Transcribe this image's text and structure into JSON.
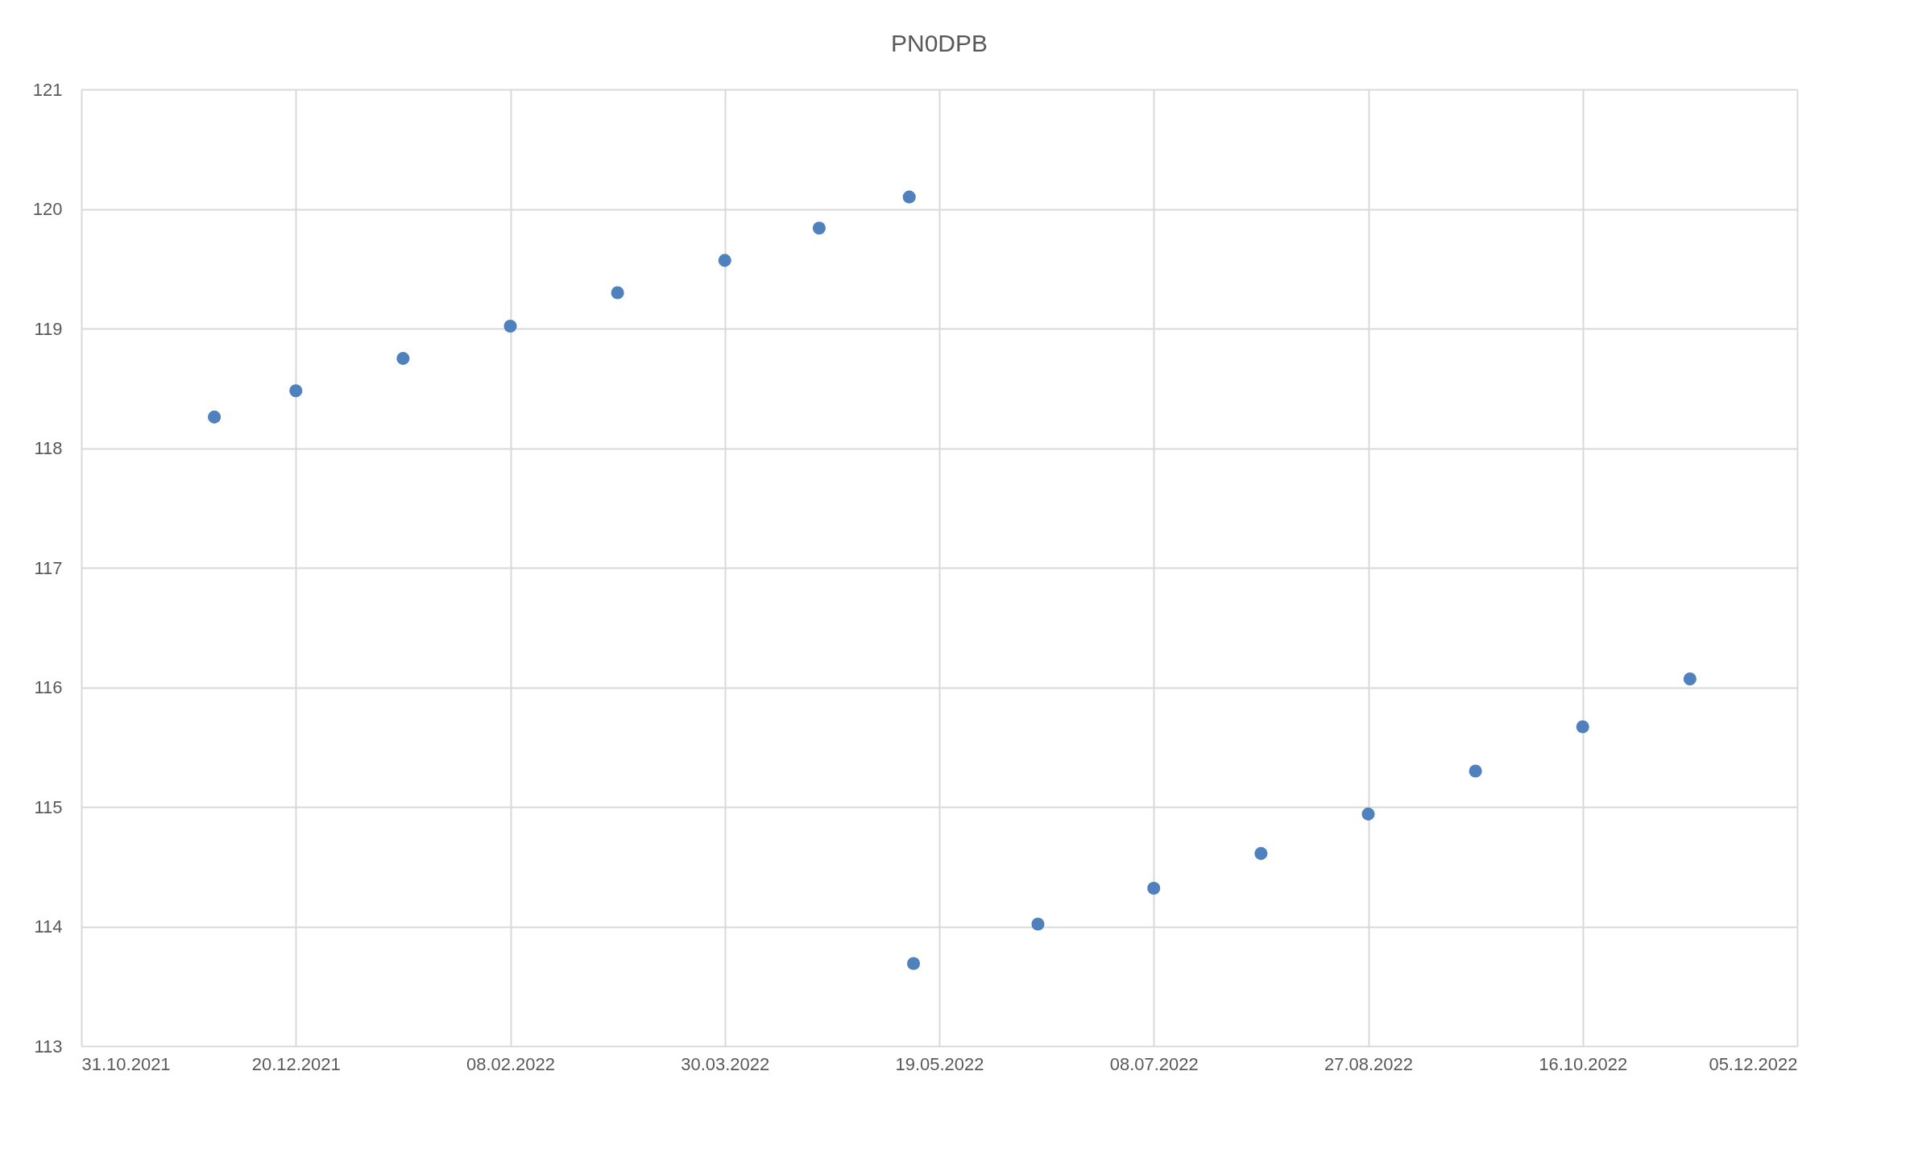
{
  "chart_data": {
    "type": "scatter",
    "title": "PN0DPB",
    "series": [
      {
        "color": "#4f81bd",
        "x": [
          "2021-12-01",
          "2021-12-20",
          "2022-01-14",
          "2022-02-08",
          "2022-03-05",
          "2022-03-30",
          "2022-04-21",
          "2022-05-12"
        ],
        "values": [
          118.26,
          118.48,
          118.75,
          119.02,
          119.3,
          119.57,
          119.84,
          120.1
        ]
      },
      {
        "color": "#4f81bd",
        "x": [
          "2022-05-13",
          "2022-06-11",
          "2022-07-08",
          "2022-08-02",
          "2022-08-27",
          "2022-09-21",
          "2022-10-16",
          "2022-11-10"
        ],
        "values": [
          113.69,
          114.02,
          114.32,
          114.61,
          114.94,
          115.3,
          115.67,
          116.07
        ]
      }
    ],
    "xlim": [
      "2021-10-31",
      "2022-12-05"
    ],
    "xticks": [
      {
        "value": "2021-10-31",
        "label": "31.10.2021"
      },
      {
        "value": "2021-12-20",
        "label": "20.12.2021"
      },
      {
        "value": "2022-02-08",
        "label": "08.02.2022"
      },
      {
        "value": "2022-03-30",
        "label": "30.03.2022"
      },
      {
        "value": "2022-05-19",
        "label": "19.05.2022"
      },
      {
        "value": "2022-07-08",
        "label": "08.07.2022"
      },
      {
        "value": "2022-08-27",
        "label": "27.08.2022"
      },
      {
        "value": "2022-10-16",
        "label": "16.10.2022"
      },
      {
        "value": "2022-12-05",
        "label": "05.12.2022"
      }
    ],
    "ylim": [
      113,
      121
    ],
    "yticks": [
      113,
      114,
      115,
      116,
      117,
      118,
      119,
      120,
      121
    ],
    "grid": true,
    "marker": "circle",
    "legend": false
  }
}
